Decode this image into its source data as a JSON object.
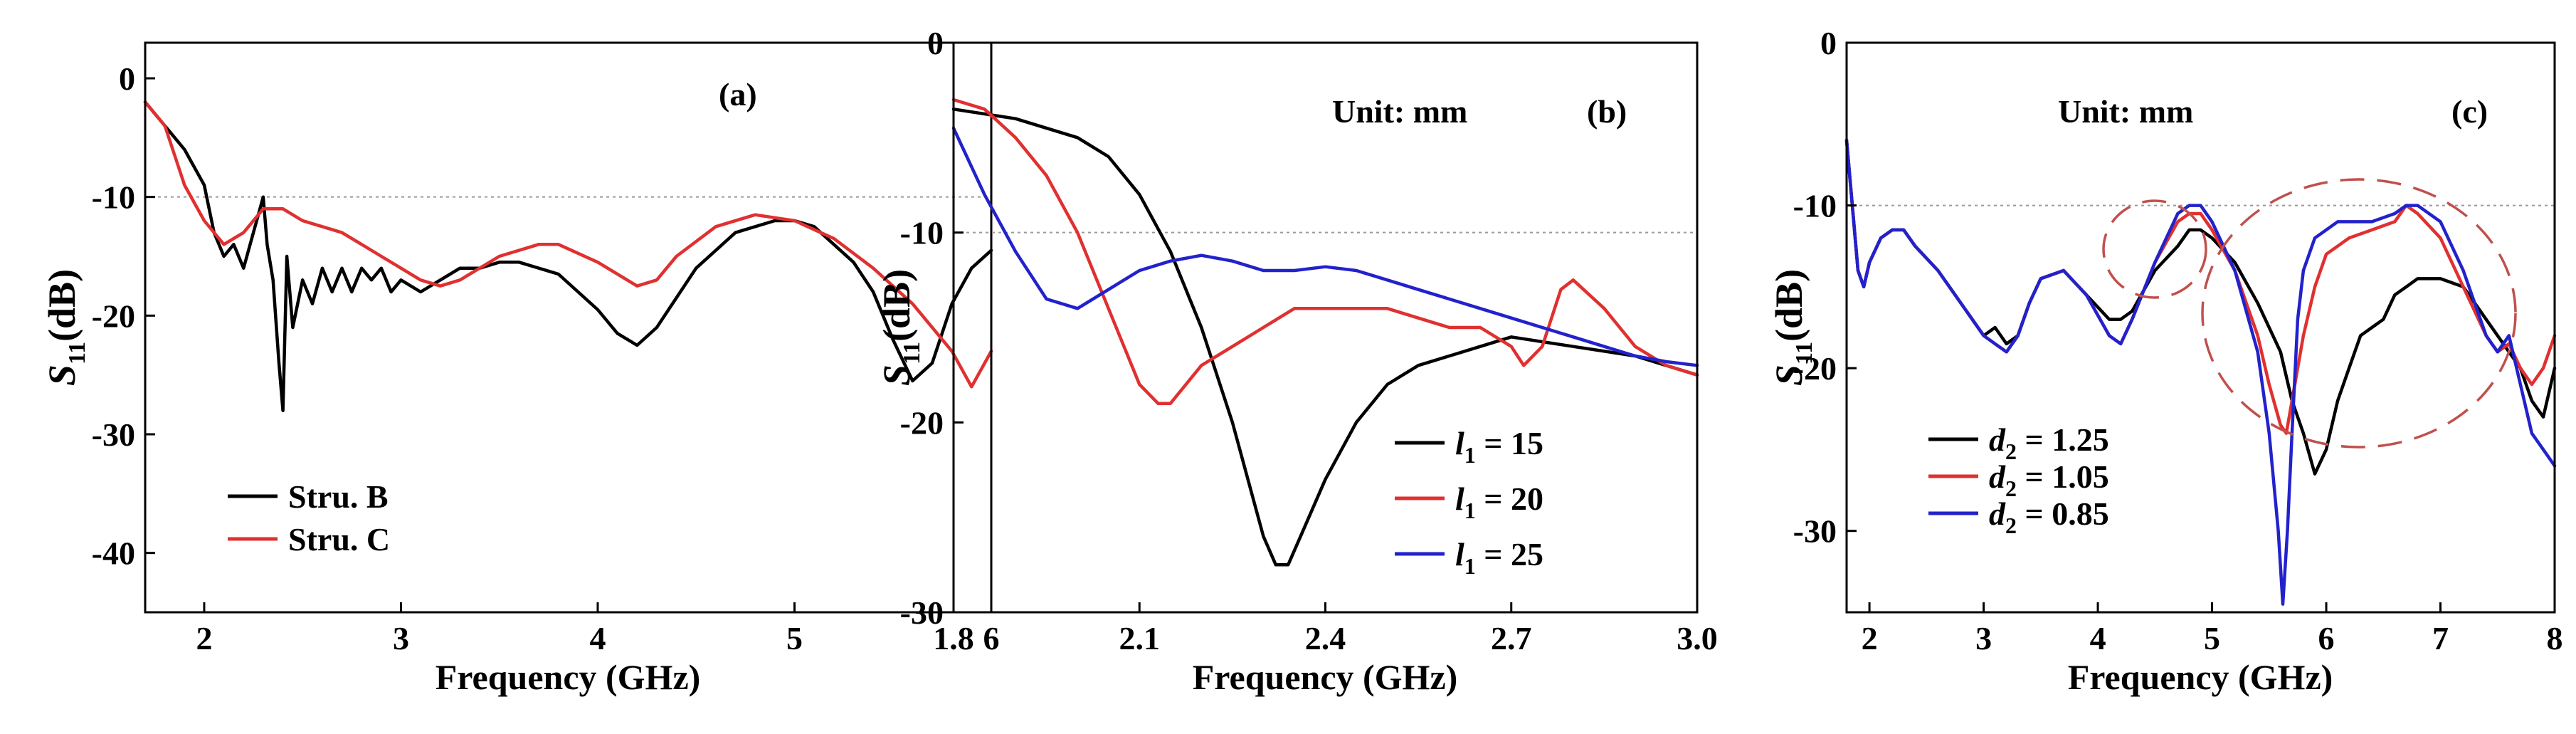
{
  "chart_data": [
    {
      "panel": "a",
      "type": "line",
      "tag": "(a)",
      "xlabel": "Frequency (GHz)",
      "ylabel": "S11(dB)",
      "xlim": [
        1.7,
        6.0
      ],
      "ylim": [
        -45,
        3
      ],
      "xticks": [
        2,
        3,
        4,
        5,
        6
      ],
      "yticks": [
        0,
        -10,
        -20,
        -30,
        -40
      ],
      "reference_line": -10,
      "legend_position": "bottom-left",
      "series": [
        {
          "name": "Stru. B",
          "color": "#000000",
          "x": [
            1.7,
            1.8,
            1.9,
            2.0,
            2.05,
            2.1,
            2.15,
            2.2,
            2.25,
            2.3,
            2.32,
            2.35,
            2.38,
            2.4,
            2.42,
            2.45,
            2.5,
            2.55,
            2.6,
            2.65,
            2.7,
            2.75,
            2.8,
            2.85,
            2.9,
            2.95,
            3.0,
            3.1,
            3.2,
            3.3,
            3.4,
            3.5,
            3.6,
            3.8,
            4.0,
            4.1,
            4.2,
            4.3,
            4.5,
            4.7,
            4.9,
            5.0,
            5.1,
            5.3,
            5.4,
            5.5,
            5.6,
            5.7,
            5.8,
            5.9,
            6.0
          ],
          "values": [
            -2,
            -4,
            -6,
            -9,
            -13,
            -15,
            -14,
            -16,
            -13,
            -10,
            -14,
            -17,
            -24,
            -28,
            -15,
            -21,
            -17,
            -19,
            -16,
            -18,
            -16,
            -18,
            -16,
            -17,
            -16,
            -18,
            -17,
            -18,
            -17,
            -16,
            -16,
            -15.5,
            -15.5,
            -16.5,
            -19.5,
            -21.5,
            -22.5,
            -21,
            -16,
            -13,
            -12,
            -12,
            -12.5,
            -15.5,
            -18,
            -22,
            -25.5,
            -24,
            -19,
            -16,
            -14.5
          ]
        },
        {
          "name": "Stru. C",
          "color": "#e03030",
          "x": [
            1.7,
            1.8,
            1.9,
            2.0,
            2.1,
            2.2,
            2.3,
            2.4,
            2.5,
            2.6,
            2.7,
            2.8,
            2.9,
            3.0,
            3.1,
            3.2,
            3.3,
            3.5,
            3.7,
            3.8,
            4.0,
            4.2,
            4.3,
            4.4,
            4.6,
            4.8,
            5.0,
            5.2,
            5.4,
            5.6,
            5.8,
            5.9,
            6.0
          ],
          "values": [
            -2,
            -4,
            -9,
            -12,
            -14,
            -13,
            -11,
            -11,
            -12,
            -12.5,
            -13,
            -14,
            -15,
            -16,
            -17,
            -17.5,
            -17,
            -15,
            -14,
            -14,
            -15.5,
            -17.5,
            -17,
            -15,
            -12.5,
            -11.5,
            -12,
            -13.5,
            -16,
            -19,
            -23,
            -26,
            -23
          ]
        }
      ]
    },
    {
      "panel": "b",
      "type": "line",
      "tag": "(b)",
      "annotation": "Unit: mm",
      "xlabel": "Frequency (GHz)",
      "ylabel": "S11(dB)",
      "xlim": [
        1.8,
        3.0
      ],
      "ylim": [
        -30,
        0
      ],
      "xticks": [
        "1.8",
        "2.1",
        "2.4",
        "2.7",
        "3.0"
      ],
      "yticks": [
        0,
        -10,
        -20,
        -30
      ],
      "reference_line": -10,
      "legend_position": "bottom-right",
      "series": [
        {
          "name": "l1 = 15",
          "color": "#000000",
          "x": [
            1.8,
            1.9,
            2.0,
            2.05,
            2.1,
            2.15,
            2.2,
            2.25,
            2.3,
            2.32,
            2.34,
            2.36,
            2.4,
            2.45,
            2.5,
            2.55,
            2.6,
            2.65,
            2.7,
            2.8,
            2.9,
            3.0
          ],
          "values": [
            -3.5,
            -4,
            -5,
            -6,
            -8,
            -11,
            -15,
            -20,
            -26,
            -27.5,
            -27.5,
            -26,
            -23,
            -20,
            -18,
            -17,
            -16.5,
            -16,
            -15.5,
            -16,
            -16.5,
            -17.5
          ]
        },
        {
          "name": "l1 = 20",
          "color": "#e03030",
          "x": [
            1.8,
            1.85,
            1.9,
            1.95,
            2.0,
            2.05,
            2.1,
            2.13,
            2.15,
            2.2,
            2.25,
            2.3,
            2.35,
            2.4,
            2.45,
            2.5,
            2.55,
            2.6,
            2.65,
            2.7,
            2.72,
            2.75,
            2.78,
            2.8,
            2.85,
            2.9,
            2.95,
            3.0
          ],
          "values": [
            -3,
            -3.5,
            -5,
            -7,
            -10,
            -14,
            -18,
            -19,
            -19,
            -17,
            -16,
            -15,
            -14,
            -14,
            -14,
            -14,
            -14.5,
            -15,
            -15,
            -16,
            -17,
            -16,
            -13,
            -12.5,
            -14,
            -16,
            -17,
            -17.5
          ]
        },
        {
          "name": "l1 = 25",
          "color": "#2222cc",
          "x": [
            1.8,
            1.85,
            1.9,
            1.95,
            2.0,
            2.05,
            2.1,
            2.15,
            2.2,
            2.25,
            2.3,
            2.35,
            2.4,
            2.45,
            2.5,
            2.55,
            2.6,
            2.65,
            2.7,
            2.75,
            2.8,
            2.85,
            2.9,
            2.95,
            3.0
          ],
          "values": [
            -4.5,
            -8,
            -11,
            -13.5,
            -14,
            -13,
            -12,
            -11.5,
            -11.2,
            -11.5,
            -12,
            -12,
            -11.8,
            -12,
            -12.5,
            -13,
            -13.5,
            -14,
            -14.5,
            -15,
            -15.5,
            -16,
            -16.5,
            -16.8,
            -17
          ]
        }
      ]
    },
    {
      "panel": "c",
      "type": "line",
      "tag": "(c)",
      "annotation": "Unit: mm",
      "xlabel": "Frequency (GHz)",
      "ylabel": "S11(dB)",
      "xlim": [
        1.8,
        8.0
      ],
      "ylim": [
        -35,
        0
      ],
      "xticks": [
        2,
        3,
        4,
        5,
        6,
        7,
        8
      ],
      "yticks": [
        0,
        -10,
        -20,
        -30
      ],
      "reference_line": -10,
      "legend_position": "bottom-left",
      "series": [
        {
          "name": "d2 = 1.25",
          "color": "#000000",
          "x": [
            1.8,
            1.85,
            1.9,
            1.95,
            2.0,
            2.1,
            2.2,
            2.3,
            2.4,
            2.6,
            2.8,
            3.0,
            3.1,
            3.2,
            3.3,
            3.4,
            3.5,
            3.7,
            3.9,
            4.1,
            4.2,
            4.3,
            4.5,
            4.7,
            4.8,
            4.9,
            5.0,
            5.2,
            5.4,
            5.6,
            5.7,
            5.8,
            5.9,
            6.0,
            6.1,
            6.2,
            6.3,
            6.4,
            6.5,
            6.6,
            6.7,
            6.8,
            7.0,
            7.2,
            7.3,
            7.4,
            7.5,
            7.6,
            7.7,
            7.8,
            7.9,
            8.0
          ],
          "values": [
            -6,
            -10,
            -14,
            -15,
            -13.5,
            -12,
            -11.5,
            -11.5,
            -12.5,
            -14,
            -16,
            -18,
            -17.5,
            -18.5,
            -18,
            -16,
            -14.5,
            -14,
            -15.5,
            -17,
            -17,
            -16.5,
            -14,
            -12.5,
            -11.5,
            -11.5,
            -12,
            -13.5,
            -16,
            -19,
            -22,
            -24,
            -26.5,
            -25,
            -22,
            -20,
            -18,
            -17.5,
            -17,
            -15.5,
            -15,
            -14.5,
            -14.5,
            -15,
            -16,
            -17,
            -18,
            -19,
            -20,
            -22,
            -23,
            -20
          ]
        },
        {
          "name": "d2 = 1.05",
          "color": "#e03030",
          "x": [
            1.8,
            1.85,
            1.9,
            1.95,
            2.0,
            2.1,
            2.2,
            2.3,
            2.4,
            2.6,
            2.8,
            3.0,
            3.1,
            3.2,
            3.3,
            3.4,
            3.5,
            3.7,
            3.9,
            4.1,
            4.2,
            4.3,
            4.5,
            4.7,
            4.8,
            4.9,
            5.0,
            5.2,
            5.4,
            5.5,
            5.6,
            5.65,
            5.7,
            5.8,
            5.9,
            6.0,
            6.1,
            6.2,
            6.4,
            6.6,
            6.7,
            6.8,
            7.0,
            7.2,
            7.4,
            7.5,
            7.6,
            7.7,
            7.8,
            7.9,
            8.0
          ],
          "values": [
            -6,
            -10,
            -14,
            -15,
            -13.5,
            -12,
            -11.5,
            -11.5,
            -12.5,
            -14,
            -16,
            -18,
            -18.5,
            -19,
            -18,
            -16,
            -14.5,
            -14,
            -15.5,
            -18,
            -18.5,
            -17,
            -13.5,
            -11,
            -10.5,
            -10.5,
            -11.5,
            -14,
            -18,
            -21,
            -23.5,
            -24,
            -22,
            -18,
            -15,
            -13,
            -12.5,
            -12,
            -11.5,
            -11,
            -10,
            -10.5,
            -12,
            -15,
            -18,
            -19,
            -18.5,
            -20,
            -21,
            -20,
            -18
          ]
        },
        {
          "name": "d2 = 0.85",
          "color": "#2222cc",
          "x": [
            1.8,
            1.85,
            1.9,
            1.95,
            2.0,
            2.1,
            2.2,
            2.3,
            2.4,
            2.6,
            2.8,
            3.0,
            3.1,
            3.2,
            3.3,
            3.4,
            3.5,
            3.7,
            3.9,
            4.1,
            4.2,
            4.3,
            4.5,
            4.7,
            4.8,
            4.9,
            5.0,
            5.2,
            5.4,
            5.5,
            5.58,
            5.62,
            5.66,
            5.7,
            5.75,
            5.8,
            5.9,
            6.0,
            6.1,
            6.2,
            6.4,
            6.6,
            6.7,
            6.8,
            7.0,
            7.2,
            7.4,
            7.5,
            7.6,
            7.7,
            7.8,
            7.9,
            8.0
          ],
          "values": [
            -6,
            -10,
            -14,
            -15,
            -13.5,
            -12,
            -11.5,
            -11.5,
            -12.5,
            -14,
            -16,
            -18,
            -18.5,
            -19,
            -18,
            -16,
            -14.5,
            -14,
            -15.5,
            -18,
            -18.5,
            -17,
            -13.5,
            -10.5,
            -10,
            -10,
            -11,
            -14,
            -19,
            -24,
            -30,
            -34.5,
            -30,
            -24,
            -17,
            -14,
            -12,
            -11.5,
            -11,
            -11,
            -11,
            -10.5,
            -10,
            -10,
            -11,
            -14,
            -18,
            -19,
            -18,
            -21,
            -24,
            -25,
            -26
          ]
        }
      ]
    }
  ]
}
